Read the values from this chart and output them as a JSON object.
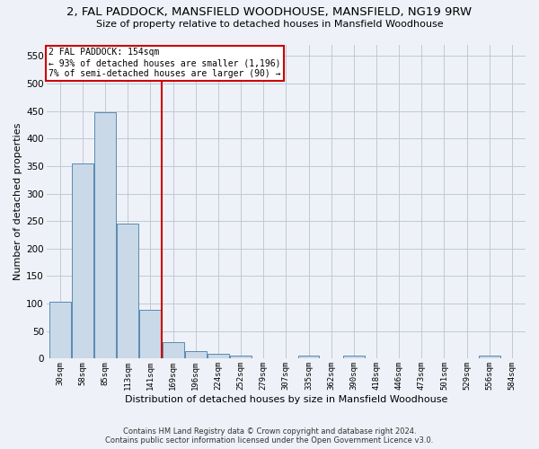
{
  "title": "2, FAL PADDOCK, MANSFIELD WOODHOUSE, MANSFIELD, NG19 9RW",
  "subtitle": "Size of property relative to detached houses in Mansfield Woodhouse",
  "xlabel": "Distribution of detached houses by size in Mansfield Woodhouse",
  "ylabel": "Number of detached properties",
  "footer_line1": "Contains HM Land Registry data © Crown copyright and database right 2024.",
  "footer_line2": "Contains public sector information licensed under the Open Government Licence v3.0.",
  "annotation_line1": "2 FAL PADDOCK: 154sqm",
  "annotation_line2": "← 93% of detached houses are smaller (1,196)",
  "annotation_line3": "7% of semi-detached houses are larger (90) →",
  "bar_color": "#c9d9e8",
  "bar_edge_color": "#5a8ab0",
  "grid_color": "#c0c8d8",
  "vline_color": "#cc0000",
  "background_color": "#eef2f8",
  "bins": [
    "30sqm",
    "58sqm",
    "85sqm",
    "113sqm",
    "141sqm",
    "169sqm",
    "196sqm",
    "224sqm",
    "252sqm",
    "279sqm",
    "307sqm",
    "335sqm",
    "362sqm",
    "390sqm",
    "418sqm",
    "446sqm",
    "473sqm",
    "501sqm",
    "529sqm",
    "556sqm",
    "584sqm"
  ],
  "values": [
    103,
    354,
    448,
    246,
    88,
    30,
    14,
    9,
    6,
    0,
    0,
    5,
    0,
    5,
    0,
    0,
    0,
    0,
    0,
    5,
    0
  ],
  "vline_x_index": 4.5,
  "ylim": [
    0,
    570
  ],
  "yticks": [
    0,
    50,
    100,
    150,
    200,
    250,
    300,
    350,
    400,
    450,
    500,
    550
  ]
}
